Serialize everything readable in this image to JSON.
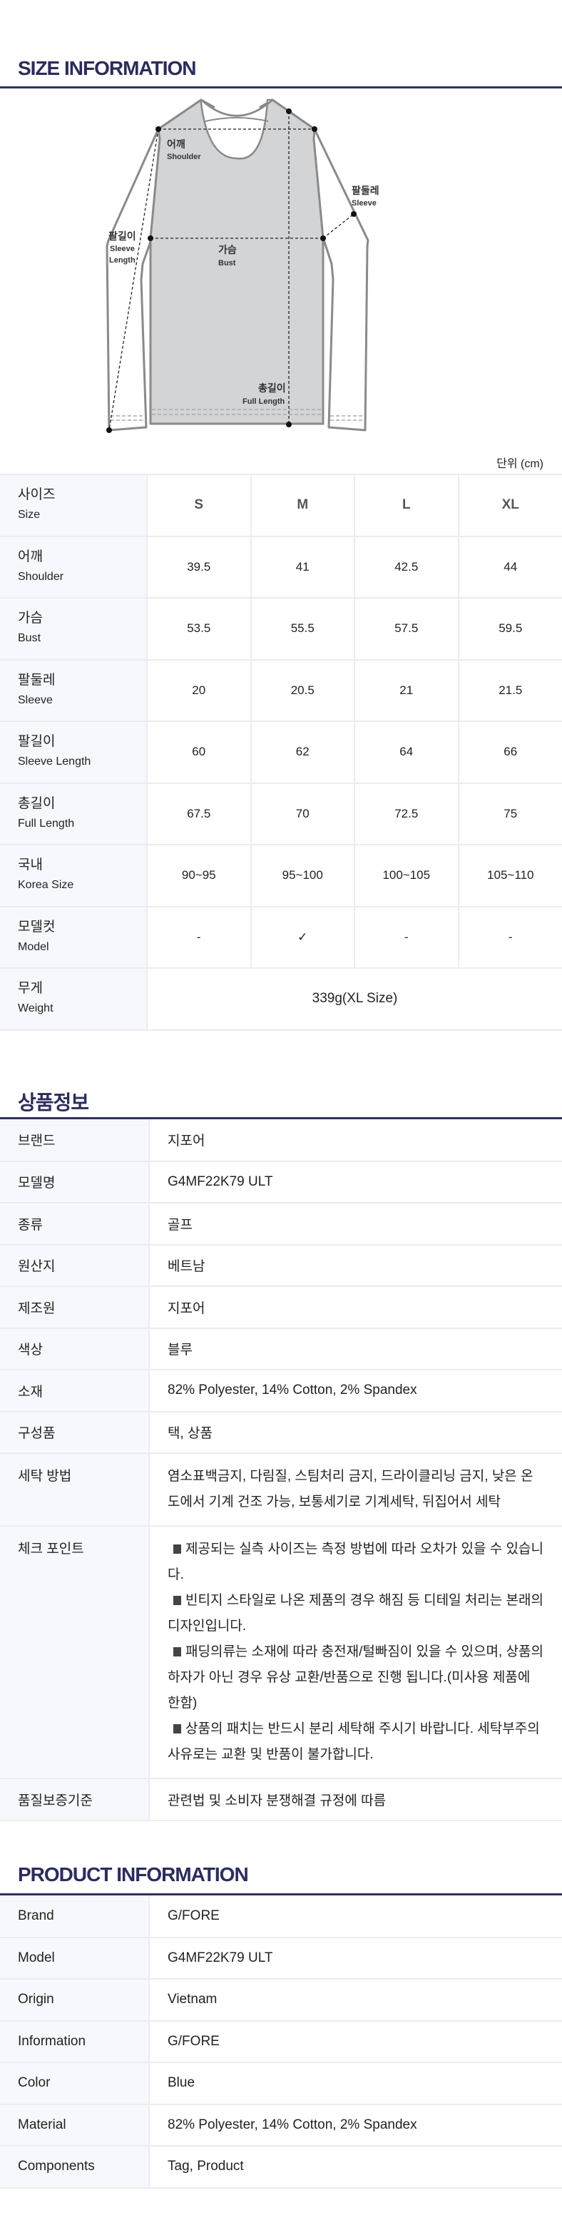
{
  "size_info": {
    "title": "SIZE INFORMATION",
    "diagram": {
      "shoulder_ko": "어깨",
      "shoulder_en": "Shoulder",
      "sleeve_ko": "팔둘레",
      "sleeve_en": "Sleeve",
      "sleeve_length_ko": "팔길이",
      "sleeve_length_en1": "Sleeve",
      "sleeve_length_en2": "Length",
      "bust_ko": "가슴",
      "bust_en": "Bust",
      "full_length_ko": "총길이",
      "full_length_en": "Full Length"
    },
    "unit": "단위 (cm)",
    "header": {
      "ko": "사이즈",
      "en": "Size",
      "sizes": [
        "S",
        "M",
        "L",
        "XL"
      ]
    },
    "rows": [
      {
        "ko": "어깨",
        "en": "Shoulder",
        "values": [
          "39.5",
          "41",
          "42.5",
          "44"
        ]
      },
      {
        "ko": "가슴",
        "en": "Bust",
        "values": [
          "53.5",
          "55.5",
          "57.5",
          "59.5"
        ]
      },
      {
        "ko": "팔둘레",
        "en": "Sleeve",
        "values": [
          "20",
          "20.5",
          "21",
          "21.5"
        ]
      },
      {
        "ko": "팔길이",
        "en": "Sleeve Length",
        "values": [
          "60",
          "62",
          "64",
          "66"
        ]
      },
      {
        "ko": "총길이",
        "en": "Full Length",
        "values": [
          "67.5",
          "70",
          "72.5",
          "75"
        ]
      },
      {
        "ko": "국내",
        "en": "Korea Size",
        "values": [
          "90~95",
          "95~100",
          "100~105",
          "105~110"
        ]
      },
      {
        "ko": "모델컷",
        "en": "Model",
        "values": [
          "-",
          "✓",
          "-",
          "-"
        ]
      }
    ],
    "weight": {
      "ko": "무게",
      "en": "Weight",
      "value": "339g(XL Size)"
    }
  },
  "product_info_ko": {
    "title": "상품정보",
    "rows": [
      {
        "label": "브랜드",
        "value": "지포어"
      },
      {
        "label": "모델명",
        "value": "G4MF22K79 ULT"
      },
      {
        "label": "종류",
        "value": "골프"
      },
      {
        "label": "원산지",
        "value": "베트남"
      },
      {
        "label": "제조원",
        "value": "지포어"
      },
      {
        "label": "색상",
        "value": "블루"
      },
      {
        "label": "소재",
        "value": "82% Polyester, 14% Cotton, 2% Spandex"
      },
      {
        "label": "구성품",
        "value": "택, 상품"
      },
      {
        "label": "세탁 방법",
        "value": "염소표백금지, 다림질, 스팀처리 금지, 드라이클리닝 금지, 낮은 온도에서 기계 건조 가능, 보통세기로 기계세탁, 뒤집어서 세탁"
      }
    ],
    "checkpoint": {
      "label": "체크 포인트",
      "items": [
        "제공되는 실측 사이즈는 측정 방법에 따라 오차가 있을 수 있습니다.",
        "빈티지 스타일로 나온 제품의 경우 해짐 등 디테일 처리는 본래의 디자인입니다.",
        "패딩의류는 소재에 따라 충전재/털빠짐이 있을 수 있으며, 상품의 하자가 아닌 경우 유상 교환/반품으로 진행 됩니다.(미사용 제품에 한함)",
        "상품의 패치는 반드시 분리 세탁해 주시기 바랍니다. 세탁부주의 사유로는 교환 및 반품이 불가합니다."
      ]
    },
    "quality": {
      "label": "품질보증기준",
      "value": "관련법 및 소비자 분쟁해결 규정에 따름"
    }
  },
  "product_info_en": {
    "title": "PRODUCT INFORMATION",
    "rows": [
      {
        "label": "Brand",
        "value": "G/FORE"
      },
      {
        "label": "Model",
        "value": "G4MF22K79 ULT"
      },
      {
        "label": "Origin",
        "value": "Vietnam"
      },
      {
        "label": "Information",
        "value": "G/FORE"
      },
      {
        "label": "Color",
        "value": "Blue"
      },
      {
        "label": "Material",
        "value": "82% Polyester, 14% Cotton, 2% Spandex"
      },
      {
        "label": "Components",
        "value": "Tag, Product"
      }
    ]
  },
  "colors": {
    "heading": "#2b2c5e",
    "label_bg": "#f7f8fd",
    "border": "#ececec"
  }
}
